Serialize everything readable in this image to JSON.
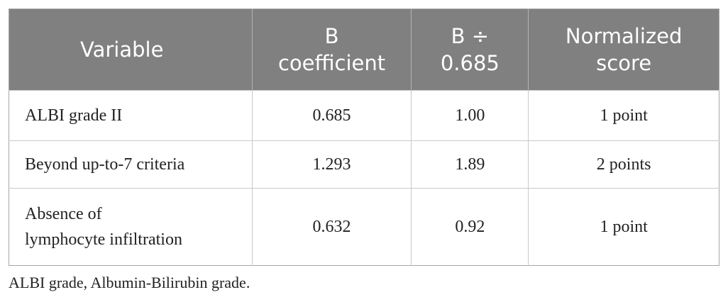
{
  "table": {
    "header": [
      "Variable",
      "B\ncoefficient",
      "B ÷\n0.685",
      "Normalized\nscore"
    ],
    "rows": [
      [
        "ALBI grade II",
        "0.685",
        "1.00",
        "1 point"
      ],
      [
        "Beyond up-to-7 criteria",
        "1.293",
        "1.89",
        "2 points"
      ],
      [
        "Absence of\nlymphocyte infiltration",
        "0.632",
        "0.92",
        "1 point"
      ]
    ]
  },
  "footnote": "ALBI grade, Albumin-Bilirubin grade."
}
